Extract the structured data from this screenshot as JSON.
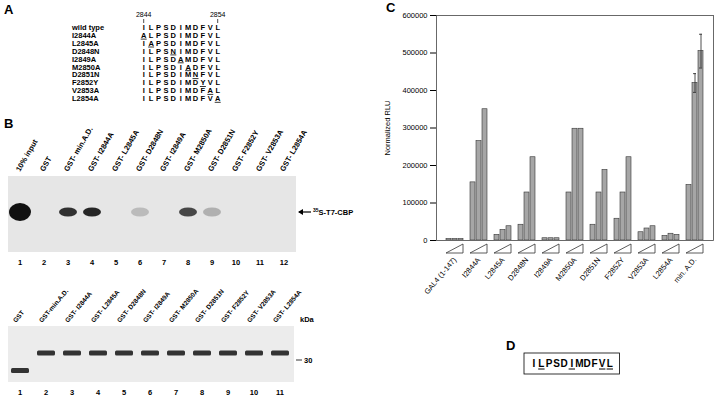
{
  "figure": {
    "A": {
      "label": "A",
      "start": 2844,
      "end": 2854,
      "rows": [
        {
          "name": "wild type",
          "sequence": "ILPSDIMDFVL"
        },
        {
          "name": "I2844A",
          "sequence": "ALPSDIMDFVL"
        },
        {
          "name": "L2845A",
          "sequence": "IAPSDIMDFVL"
        },
        {
          "name": "D2848N",
          "sequence": "ILPSNIMDFVL"
        },
        {
          "name": "I2849A",
          "sequence": "ILPSDAMDFVL"
        },
        {
          "name": "M2850A",
          "sequence": "ILPSDIADFVL"
        },
        {
          "name": "D2851N",
          "sequence": "ILPSDIMNFVL"
        },
        {
          "name": "F2852Y",
          "sequence": "ILPSDIMDYVL"
        },
        {
          "name": "V2853A",
          "sequence": "ILPSDIMDFAL"
        },
        {
          "name": "L2854A",
          "sequence": "ILPSDIMDFVA"
        }
      ]
    },
    "B": {
      "label": "B",
      "top_gel": {
        "arrow_label": "35S-T7-CBP",
        "lanes": [
          {
            "name": "10% input",
            "number": 1,
            "signal": 1
          },
          {
            "name": "GST",
            "number": 2,
            "signal": 0
          },
          {
            "name": "GST- min.A.D.",
            "number": 3,
            "signal": 0.85
          },
          {
            "name": "GST- I2844A",
            "number": 4,
            "signal": 0.9
          },
          {
            "name": "GST- L2845A",
            "number": 5,
            "signal": 0
          },
          {
            "name": "GST- D2848N",
            "number": 6,
            "signal": 0.2
          },
          {
            "name": "GST- I2849A",
            "number": 7,
            "signal": 0
          },
          {
            "name": "GST- M2850A",
            "number": 8,
            "signal": 0.75
          },
          {
            "name": "GST- D2851N",
            "number": 9,
            "signal": 0.25
          },
          {
            "name": "GST- F2852Y",
            "number": 10,
            "signal": 0
          },
          {
            "name": "GST- V2853A",
            "number": 11,
            "signal": 0
          },
          {
            "name": "GST- L2854A",
            "number": 12,
            "signal": 0
          }
        ]
      },
      "bottom_gel": {
        "unit": "kDa",
        "marker": 30,
        "lanes": [
          {
            "name": "GST",
            "number": 1,
            "kda": 27
          },
          {
            "name": "GST-min.A.D.",
            "number": 2,
            "kda": 32
          },
          {
            "name": "GST- I2844A",
            "number": 3,
            "kda": 32
          },
          {
            "name": "GST- L2845A",
            "number": 4,
            "kda": 32
          },
          {
            "name": "GST- D2848N",
            "number": 5,
            "kda": 32
          },
          {
            "name": "GST- I2849A",
            "number": 6,
            "kda": 32
          },
          {
            "name": "GST- M2850A",
            "number": 7,
            "kda": 32
          },
          {
            "name": "GST- D2851N",
            "number": 8,
            "kda": 32
          },
          {
            "name": "GST- F2852Y",
            "number": 9,
            "kda": 32
          },
          {
            "name": "GST- V2853A",
            "number": 10,
            "kda": 32
          },
          {
            "name": "GST- L2854A",
            "number": 11,
            "kda": 32
          }
        ]
      }
    },
    "C": {
      "label": "C"
    },
    "D": {
      "label": "D",
      "sequence": "ILPSDIMDFVL",
      "underlined": [
        2845,
        2849,
        2853,
        2854
      ]
    }
  },
  "chart_data": {
    "type": "bar",
    "ylabel": "Normalized RLU",
    "categories": [
      "GAL4 (1-147)",
      "I2844A",
      "L2845A",
      "D2848N",
      "I2849A",
      "M2850A",
      "D2851N",
      "F2852Y",
      "V2853A",
      "L2854A",
      "min. A.D."
    ],
    "values": [
      [
        4000,
        4000,
        4000
      ],
      [
        155000,
        265000,
        350000
      ],
      [
        15000,
        28000,
        38000
      ],
      [
        42000,
        128000,
        222000
      ],
      [
        6000,
        6000,
        6000
      ],
      [
        128000,
        298000,
        298000
      ],
      [
        42000,
        128000,
        188000
      ],
      [
        58000,
        128000,
        222000
      ],
      [
        22000,
        32000,
        38000
      ],
      [
        12000,
        18000,
        15000
      ],
      [
        148000,
        420000,
        505000
      ]
    ],
    "errors": [
      [
        null,
        null,
        null
      ],
      [
        null,
        null,
        null
      ],
      [
        null,
        null,
        null
      ],
      [
        null,
        null,
        null
      ],
      [
        null,
        null,
        null
      ],
      [
        null,
        null,
        null
      ],
      [
        null,
        null,
        null
      ],
      [
        null,
        null,
        null
      ],
      [
        null,
        null,
        null
      ],
      [
        null,
        null,
        null
      ],
      [
        null,
        25000,
        45000
      ]
    ],
    "color": "#a6a6a6",
    "ylim": [
      0,
      600000
    ],
    "yticks": [
      0,
      100000,
      200000,
      300000,
      400000,
      500000,
      600000
    ],
    "grid": false
  }
}
